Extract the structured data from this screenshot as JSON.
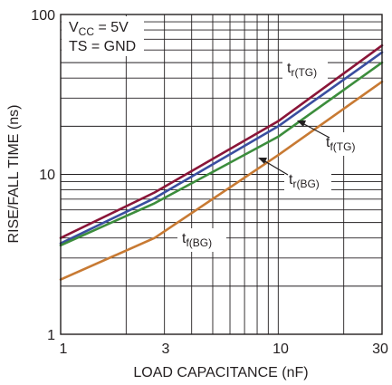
{
  "chart_data": {
    "type": "line",
    "xlabel": "LOAD CAPACITANCE (nF)",
    "ylabel": "RISE/FALL TIME (ns)",
    "x_scale": "log",
    "y_scale": "log",
    "xlim": [
      1,
      30
    ],
    "ylim": [
      1,
      100
    ],
    "x_ticks": [
      1,
      3,
      10,
      30
    ],
    "x_tick_labels": [
      "1",
      "3",
      "10",
      "30"
    ],
    "y_ticks": [
      1,
      10,
      100
    ],
    "y_tick_labels": [
      "1",
      "10",
      "100"
    ],
    "grid": true,
    "annotations": {
      "vcc": {
        "main": "V",
        "sub": "CC",
        "rest": " = 5V"
      },
      "ts": {
        "text": "TS = GND"
      }
    },
    "series": [
      {
        "name": "t_r(TG)",
        "label_main": "t",
        "label_sub": "r(TG)",
        "color": "#8a1538",
        "x": [
          1,
          2.7,
          10,
          30
        ],
        "y": [
          4.0,
          7.7,
          21.5,
          64
        ]
      },
      {
        "name": "t_f(TG)",
        "label_main": "t",
        "label_sub": "f(TG)",
        "color": "#3a4ea0",
        "x": [
          1,
          2.7,
          10,
          30
        ],
        "y": [
          3.7,
          7.1,
          20,
          58
        ]
      },
      {
        "name": "t_r(BG)",
        "label_main": "t",
        "label_sub": "r(BG)",
        "color": "#3c8d3c",
        "x": [
          1,
          2.7,
          10,
          30
        ],
        "y": [
          3.6,
          6.6,
          17.2,
          50
        ]
      },
      {
        "name": "t_f(BG)",
        "label_main": "t",
        "label_sub": "f(BG)",
        "color": "#c87a33",
        "x": [
          1,
          2.7,
          10,
          30
        ],
        "y": [
          2.2,
          4.0,
          13.2,
          38
        ]
      }
    ]
  }
}
